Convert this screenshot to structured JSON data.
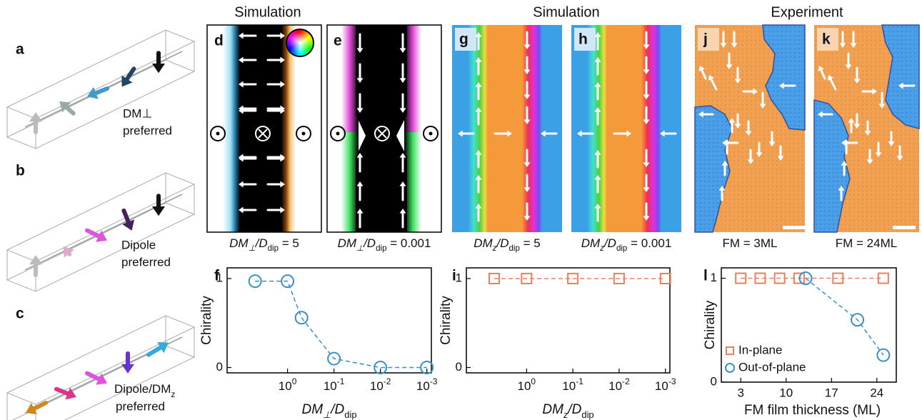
{
  "panels": {
    "letters": [
      "a",
      "b",
      "c",
      "d",
      "e",
      "g",
      "h",
      "j",
      "k"
    ],
    "schematic_labels": [
      [
        "DM⊥",
        "preferred"
      ],
      [
        "Dipole",
        "preferred"
      ],
      [
        "Dipole/DM",
        "z",
        "preferred"
      ]
    ],
    "section_titles": [
      "Simulation",
      "Simulation",
      "Experiment"
    ],
    "captions": [
      [
        "DM",
        "⊥",
        "/D",
        "dip",
        " = 5"
      ],
      [
        "DM",
        "⊥",
        "/D",
        "dip",
        " = 0.001"
      ],
      [
        "DM",
        "z",
        "/D",
        "dip",
        " = 5"
      ],
      [
        "DM",
        "z",
        "/D",
        "dip",
        " = 0.001"
      ],
      [
        "FM = 3ML"
      ],
      [
        "FM = 24ML"
      ]
    ]
  },
  "chart_data": [
    {
      "type": "scatter",
      "panel_letter": "f",
      "ylabel": "Chirality",
      "xlabel": [
        "DM",
        "⊥",
        "/D",
        "dip"
      ],
      "xscale": "log",
      "xlim": [
        20,
        0.0008
      ],
      "ylim": [
        -0.06,
        1.12
      ],
      "xticks": [
        {
          "value": 1,
          "label": "10",
          "exponent": "0"
        },
        {
          "value": 0.1,
          "label": "10",
          "exponent": "-1"
        },
        {
          "value": 0.01,
          "label": "10",
          "exponent": "-2"
        },
        {
          "value": 0.001,
          "label": "10",
          "exponent": "-3"
        }
      ],
      "yticks": [
        0,
        1
      ],
      "line_style": "dashed",
      "series": [
        {
          "color": "#3a8fc4",
          "marker": "circle",
          "x": [
            5,
            1,
            0.5,
            0.1,
            0.01,
            0.001
          ],
          "values": [
            0.97,
            0.97,
            0.56,
            0.1,
            0,
            0
          ]
        }
      ]
    },
    {
      "type": "scatter",
      "panel_letter": "i",
      "ylabel": "Chirality",
      "xlabel": [
        "DM",
        "z",
        "/D",
        "dip"
      ],
      "xscale": "log",
      "xlim": [
        20,
        0.0008
      ],
      "ylim": [
        -0.06,
        1.12
      ],
      "xticks": [
        {
          "value": 1,
          "label": "10",
          "exponent": "0"
        },
        {
          "value": 0.1,
          "label": "10",
          "exponent": "-1"
        },
        {
          "value": 0.01,
          "label": "10",
          "exponent": "-2"
        },
        {
          "value": 0.001,
          "label": "10",
          "exponent": "-3"
        }
      ],
      "yticks": [
        0,
        1
      ],
      "line_style": "dashed",
      "series": [
        {
          "color": "#e8805a",
          "marker": "square",
          "x": [
            5,
            1,
            0.1,
            0.01,
            0.001
          ],
          "values": [
            1,
            1,
            1,
            1,
            1
          ]
        }
      ]
    },
    {
      "type": "scatter",
      "panel_letter": "l",
      "ylabel": "Chirality",
      "xlabel": "FM film thickness (ML)",
      "xscale": "linear",
      "xlim": [
        0,
        27
      ],
      "ylim": [
        0,
        1.1
      ],
      "xticks": [
        3,
        10,
        17,
        24
      ],
      "yticks": [
        0,
        1
      ],
      "line_style": "dashed",
      "legend": "lower left",
      "series": [
        {
          "name": "In-plane",
          "color": "#e8805a",
          "marker": "square",
          "x": [
            3,
            6,
            9,
            12,
            18,
            25
          ],
          "values": [
            1,
            1,
            1,
            1,
            1,
            1
          ]
        },
        {
          "name": "Out-of-plane",
          "color": "#3a8fc4",
          "marker": "circle",
          "x": [
            13,
            21,
            25
          ],
          "values": [
            1,
            0.6,
            0.26
          ]
        }
      ]
    }
  ]
}
